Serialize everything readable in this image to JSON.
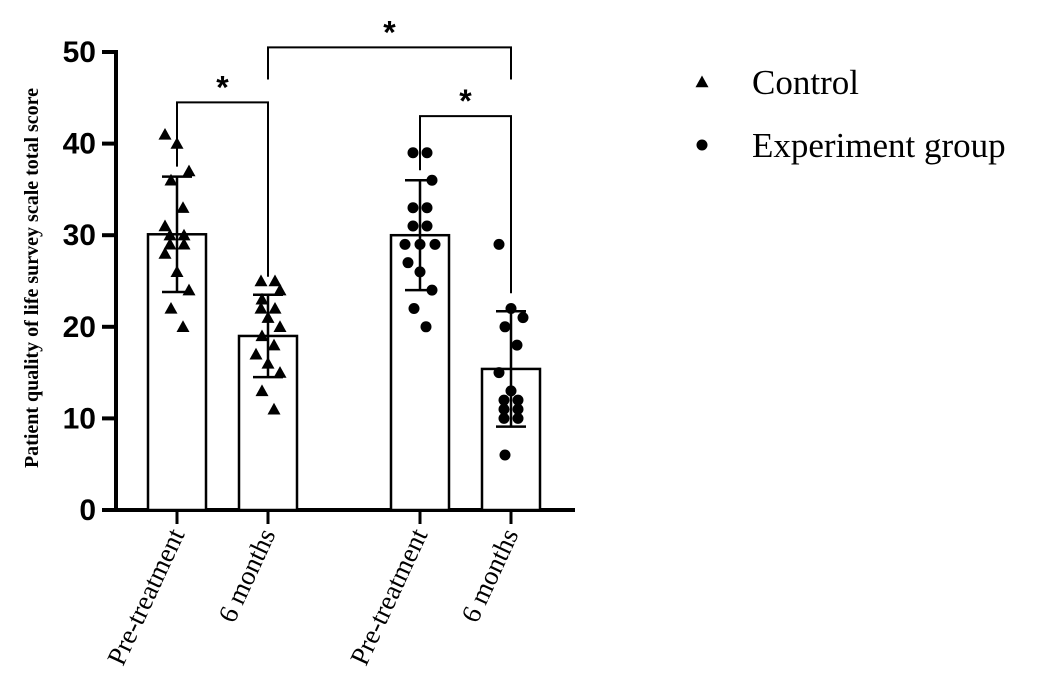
{
  "chart_data": {
    "type": "bar",
    "ylabel": "Patient quality of life survey scale total score",
    "xlabel": "",
    "ylim": [
      0,
      50
    ],
    "yticks": [
      0,
      10,
      20,
      30,
      40,
      50
    ],
    "categories": [
      "Pre-treatment",
      "6 months",
      "Pre-treatment",
      "6 months"
    ],
    "bars": [
      {
        "category": "Pre-treatment",
        "group": "Control",
        "mean": 30.1,
        "sd": 6.3,
        "points": [
          41,
          40,
          37,
          36,
          33,
          31,
          30,
          30,
          29,
          29,
          28,
          26,
          24,
          22,
          20
        ]
      },
      {
        "category": "6 months",
        "group": "Control",
        "mean": 19,
        "sd": 4.5,
        "points": [
          25,
          25,
          24,
          23,
          22,
          22,
          21,
          20,
          19,
          18,
          17,
          16,
          15,
          13,
          11
        ]
      },
      {
        "category": "Pre-treatment",
        "group": "Experiment group",
        "mean": 30,
        "sd": 6,
        "points": [
          39,
          39,
          36,
          33,
          33,
          31,
          31,
          29,
          29,
          29,
          27,
          26,
          24,
          22,
          20
        ]
      },
      {
        "category": "6 months",
        "group": "Experiment group",
        "mean": 15.4,
        "sd": 6.3,
        "points": [
          29,
          22,
          21,
          20,
          18,
          15,
          13,
          12,
          12,
          11,
          11,
          10,
          10,
          6
        ]
      }
    ],
    "series": [
      {
        "name": "Control",
        "marker": "triangle"
      },
      {
        "name": "Experiment group",
        "marker": "circle"
      }
    ],
    "significance": [
      {
        "from": 0,
        "to": 1,
        "label": "*",
        "y": 44.5
      },
      {
        "from": 2,
        "to": 3,
        "label": "*",
        "y": 43
      },
      {
        "from": 1,
        "to": 3,
        "label": "*",
        "y": 50.5
      }
    ],
    "legend_position": "right",
    "grid": false,
    "colors": {
      "bar_fill": "#ffffff",
      "stroke": "#000000"
    }
  }
}
